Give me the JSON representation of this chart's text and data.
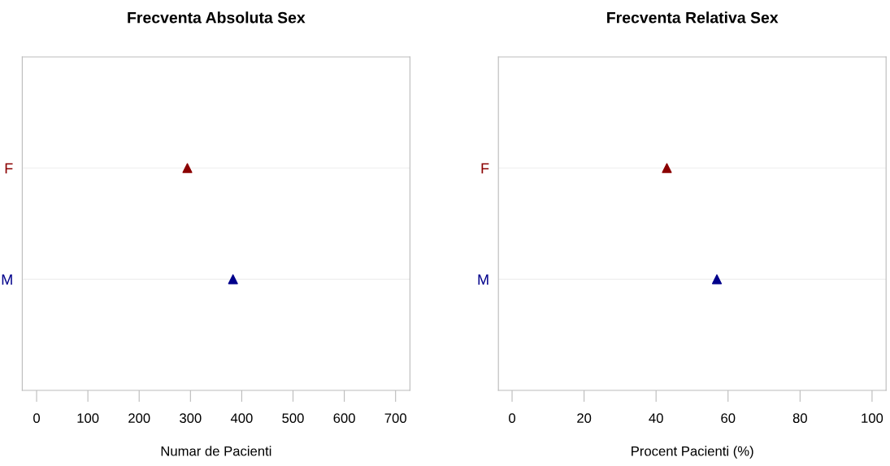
{
  "chart_data": [
    {
      "type": "scatter",
      "title": "Frecventa Absoluta Sex",
      "xlabel": "Numar de Pacienti",
      "orientation": "horizontal",
      "categories": [
        "F",
        "M"
      ],
      "values": [
        294,
        383
      ],
      "colors": [
        "#8b0000",
        "#00008b"
      ],
      "marker": "triangle",
      "xlim": [
        -28,
        728
      ],
      "xticks": [
        0,
        100,
        200,
        300,
        400,
        500,
        600,
        700
      ],
      "grid": "y",
      "legend": false
    },
    {
      "type": "scatter",
      "title": "Frecventa Relativa Sex",
      "xlabel": "Procent Pacienti (%)",
      "orientation": "horizontal",
      "categories": [
        "F",
        "M"
      ],
      "values": [
        43.0,
        56.9
      ],
      "colors": [
        "#8b0000",
        "#00008b"
      ],
      "marker": "triangle",
      "xlim": [
        -3.8,
        103.9
      ],
      "xticks": [
        0,
        20,
        40,
        60,
        80,
        100
      ],
      "grid": "y",
      "legend": false
    }
  ]
}
